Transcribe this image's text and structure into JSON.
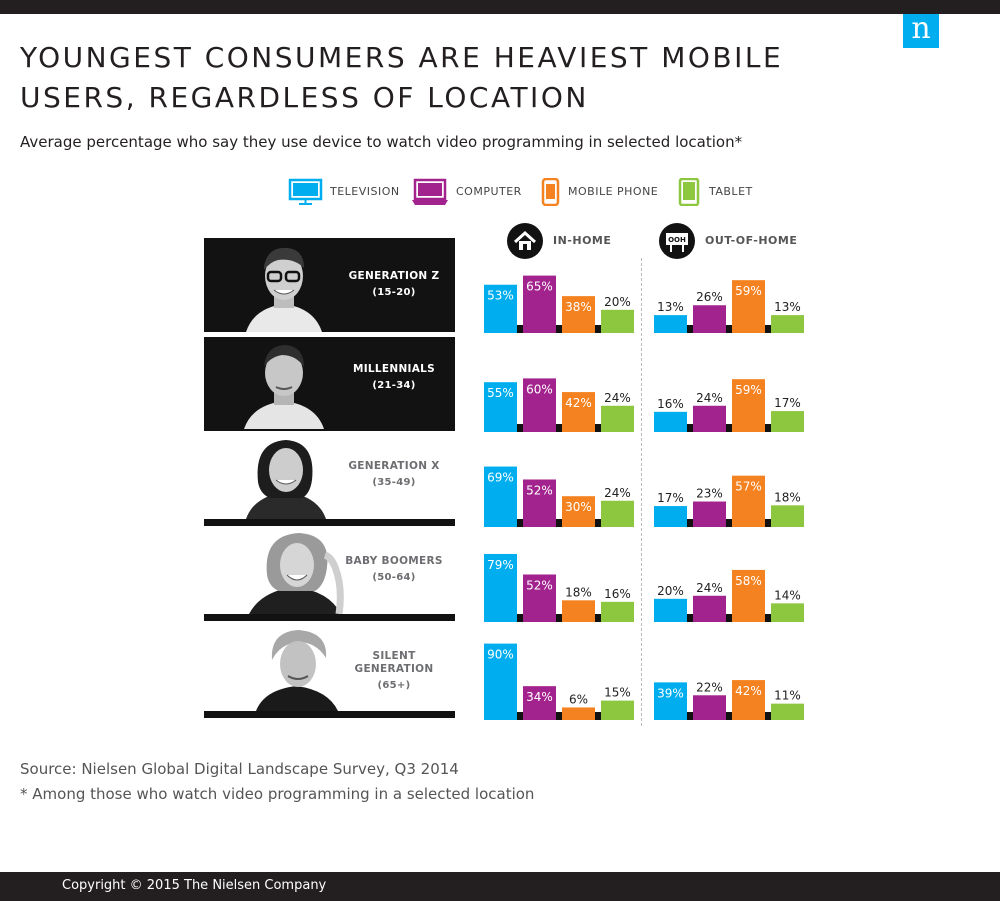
{
  "brand": {
    "logo_letter": "n",
    "logo_color": "#00aeef"
  },
  "title": "YOUNGEST CONSUMERS ARE HEAVIEST MOBILE USERS, REGARDLESS OF LOCATION",
  "subtitle": "Average percentage who say they use device to watch video programming in selected location*",
  "legend": [
    {
      "label": "TELEVISION",
      "icon": "television-icon",
      "color": "#00aeef"
    },
    {
      "label": "COMPUTER",
      "icon": "computer-icon",
      "color": "#a3238e"
    },
    {
      "label": "MOBILE PHONE",
      "icon": "mobile-phone-icon",
      "color": "#f58220"
    },
    {
      "label": "TABLET",
      "icon": "tablet-icon",
      "color": "#8dc63f"
    }
  ],
  "locations": [
    {
      "label": "IN-HOME",
      "icon": "home-icon"
    },
    {
      "label": "OUT-OF-HOME",
      "icon": "ooh-sign-icon",
      "sign_text": "OOH"
    }
  ],
  "chart_data": {
    "type": "bar",
    "categories": [
      "TELEVISION",
      "COMPUTER",
      "MOBILE PHONE",
      "TABLET"
    ],
    "ylim": [
      0,
      100
    ],
    "groups": [
      {
        "name": "GENERATION Z",
        "age": "(15-20)",
        "in_home": [
          53,
          65,
          38,
          20
        ],
        "out_of_home": [
          13,
          26,
          59,
          13
        ]
      },
      {
        "name": "MILLENNIALS",
        "age": "(21-34)",
        "in_home": [
          55,
          60,
          42,
          24
        ],
        "out_of_home": [
          16,
          24,
          59,
          17
        ]
      },
      {
        "name": "GENERATION X",
        "age": "(35-49)",
        "in_home": [
          69,
          52,
          30,
          24
        ],
        "out_of_home": [
          17,
          23,
          57,
          18
        ]
      },
      {
        "name": "BABY BOOMERS",
        "age": "(50-64)",
        "in_home": [
          79,
          52,
          18,
          16
        ],
        "out_of_home": [
          20,
          24,
          58,
          14
        ]
      },
      {
        "name": "SILENT GENERATION",
        "age": "(65+)",
        "in_home": [
          90,
          34,
          6,
          15
        ],
        "out_of_home": [
          39,
          22,
          42,
          11
        ]
      }
    ],
    "value_suffix": "%"
  },
  "footer": {
    "source": "Source: Nielsen Global Digital Landscape Survey, Q3 2014",
    "note": "* Among those who watch video programming in a selected location",
    "copyright": "Copyright © 2015 The Nielsen Company"
  }
}
